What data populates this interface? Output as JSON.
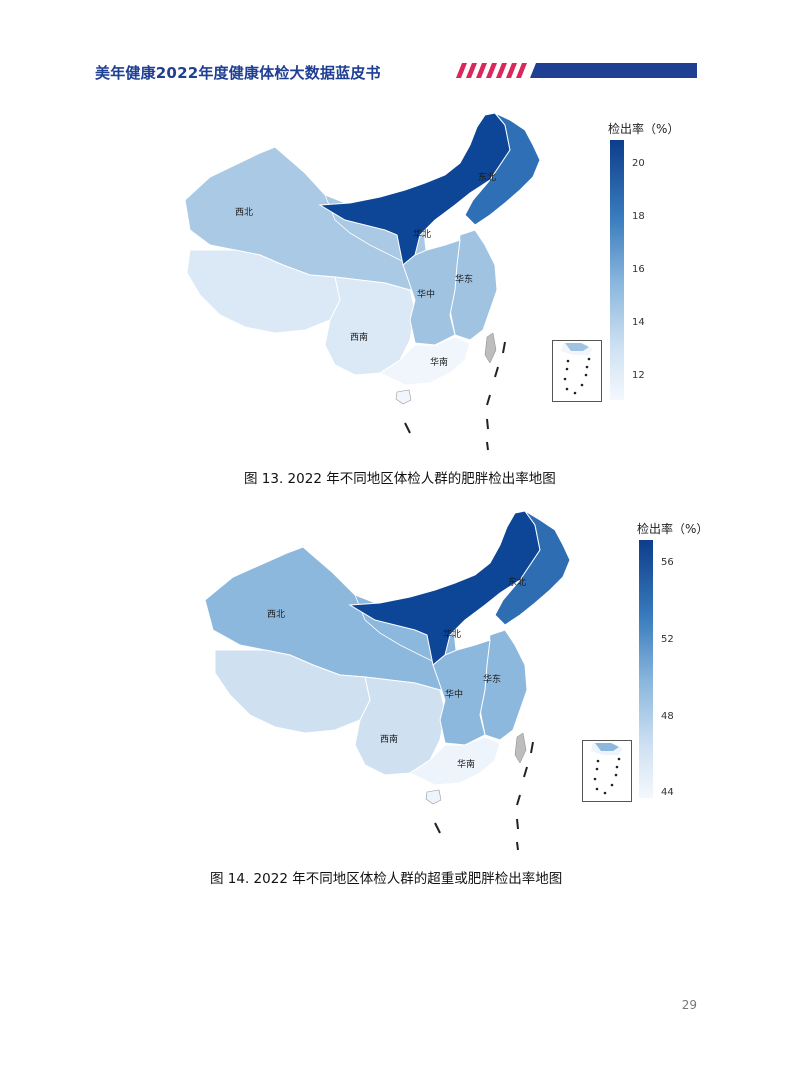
{
  "header": {
    "title": "美年健康2022年度健康体检大数据蓝皮书"
  },
  "figures": [
    {
      "caption": "图 13. 2022 年不同地区体检人群的肥胖检出率地图",
      "legend_title": "检出率（%）",
      "ticks": [
        "20",
        "18",
        "16",
        "14",
        "12"
      ],
      "regions": {
        "northwest": "西北",
        "north": "华北",
        "northeast": "东北",
        "east": "华东",
        "central": "华中",
        "southwest": "西南",
        "south": "华南"
      },
      "colors": {
        "north": "#0d4597",
        "northeast": "#2e6fb5",
        "northwest": "#a9c9e4",
        "east": "#a0c3e2",
        "central": "#a0c3e2",
        "southwest": "#dbe8f5",
        "tibet": "#dbe8f5",
        "south": "#f1f6fc"
      }
    },
    {
      "caption": "图 14. 2022 年不同地区体检人群的超重或肥胖检出率地图",
      "legend_title": "检出率（%）",
      "ticks": [
        "56",
        "52",
        "48",
        "44"
      ],
      "regions": {
        "northwest": "西北",
        "north": "华北",
        "northeast": "东北",
        "east": "华东",
        "central": "华中",
        "southwest": "西南",
        "south": "华南"
      },
      "colors": {
        "north": "#0d4597",
        "northeast": "#2f6db3",
        "northwest": "#8db8dd",
        "east": "#8db8dd",
        "central": "#8db8dd",
        "southwest": "#cfe0f1",
        "tibet": "#cfe0f1",
        "south": "#eef4fb"
      }
    }
  ],
  "page_number": "29"
}
